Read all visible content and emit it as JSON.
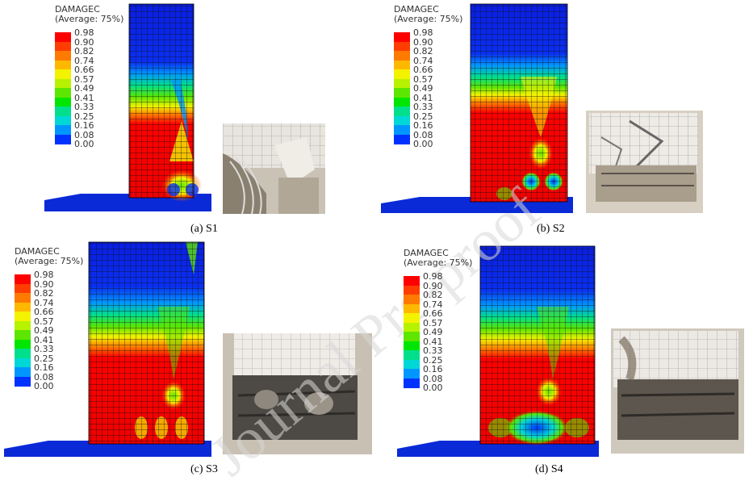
{
  "legend": {
    "title_line1": "DAMAGEC",
    "title_line2": "(Average: 75%)",
    "values": [
      "0.98",
      "0.90",
      "0.82",
      "0.74",
      "0.66",
      "0.57",
      "0.49",
      "0.41",
      "0.33",
      "0.25",
      "0.16",
      "0.08",
      "0.00"
    ],
    "colors": [
      "#ff0000",
      "#ff3d00",
      "#ff7a00",
      "#ffb800",
      "#f3f200",
      "#b7f200",
      "#5ce600",
      "#00e600",
      "#00e08c",
      "#00d7d7",
      "#0096ff",
      "#0032ff",
      "#0000d0"
    ]
  },
  "panels": [
    {
      "id": "S1",
      "caption": "(a) S1"
    },
    {
      "id": "S2",
      "caption": "(b) S2"
    },
    {
      "id": "S3",
      "caption": "(c) S3"
    },
    {
      "id": "S4",
      "caption": "(d) S4"
    }
  ],
  "watermark": "Journal Pre-proof"
}
